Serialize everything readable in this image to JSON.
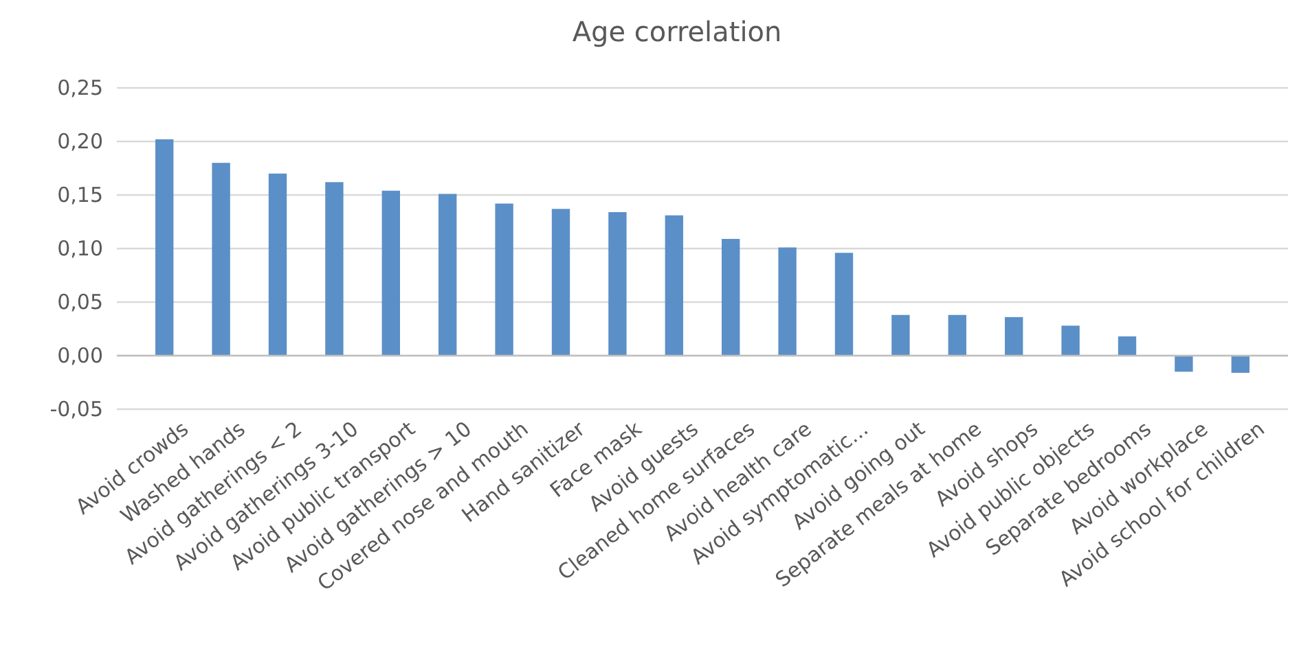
{
  "chart_data": {
    "type": "bar",
    "title": "Age correlation",
    "categories": [
      "Avoid crowds",
      "Washed hands",
      "Avoid gatherings < 2",
      "Avoid gatherings 3-10",
      "Avoid public transport",
      "Avoid gatherings > 10",
      "Covered nose and mouth",
      "Hand sanitizer",
      "Face mask",
      "Avoid guests",
      "Cleaned home surfaces",
      "Avoid health care",
      "Avoid symptomatic...",
      "Avoid going out",
      "Separate meals at home",
      "Avoid shops",
      "Avoid public objects",
      "Separate bedrooms",
      "Avoid workplace",
      "Avoid school for children"
    ],
    "values": [
      0.202,
      0.18,
      0.17,
      0.162,
      0.154,
      0.151,
      0.142,
      0.137,
      0.134,
      0.131,
      0.109,
      0.101,
      0.096,
      0.038,
      0.038,
      0.036,
      0.028,
      0.018,
      -0.015,
      -0.016
    ],
    "color": "#5b8fc7",
    "ylim": [
      -0.05,
      0.25
    ],
    "yticks": [
      {
        "value": -0.05,
        "label": "-0,05"
      },
      {
        "value": 0,
        "label": "0,00"
      },
      {
        "value": 0.05,
        "label": "0,05"
      },
      {
        "value": 0.1,
        "label": "0,10"
      },
      {
        "value": 0.15,
        "label": "0,15"
      },
      {
        "value": 0.2,
        "label": "0,20"
      },
      {
        "value": 0.25,
        "label": "0,25"
      }
    ],
    "grid": "y"
  }
}
